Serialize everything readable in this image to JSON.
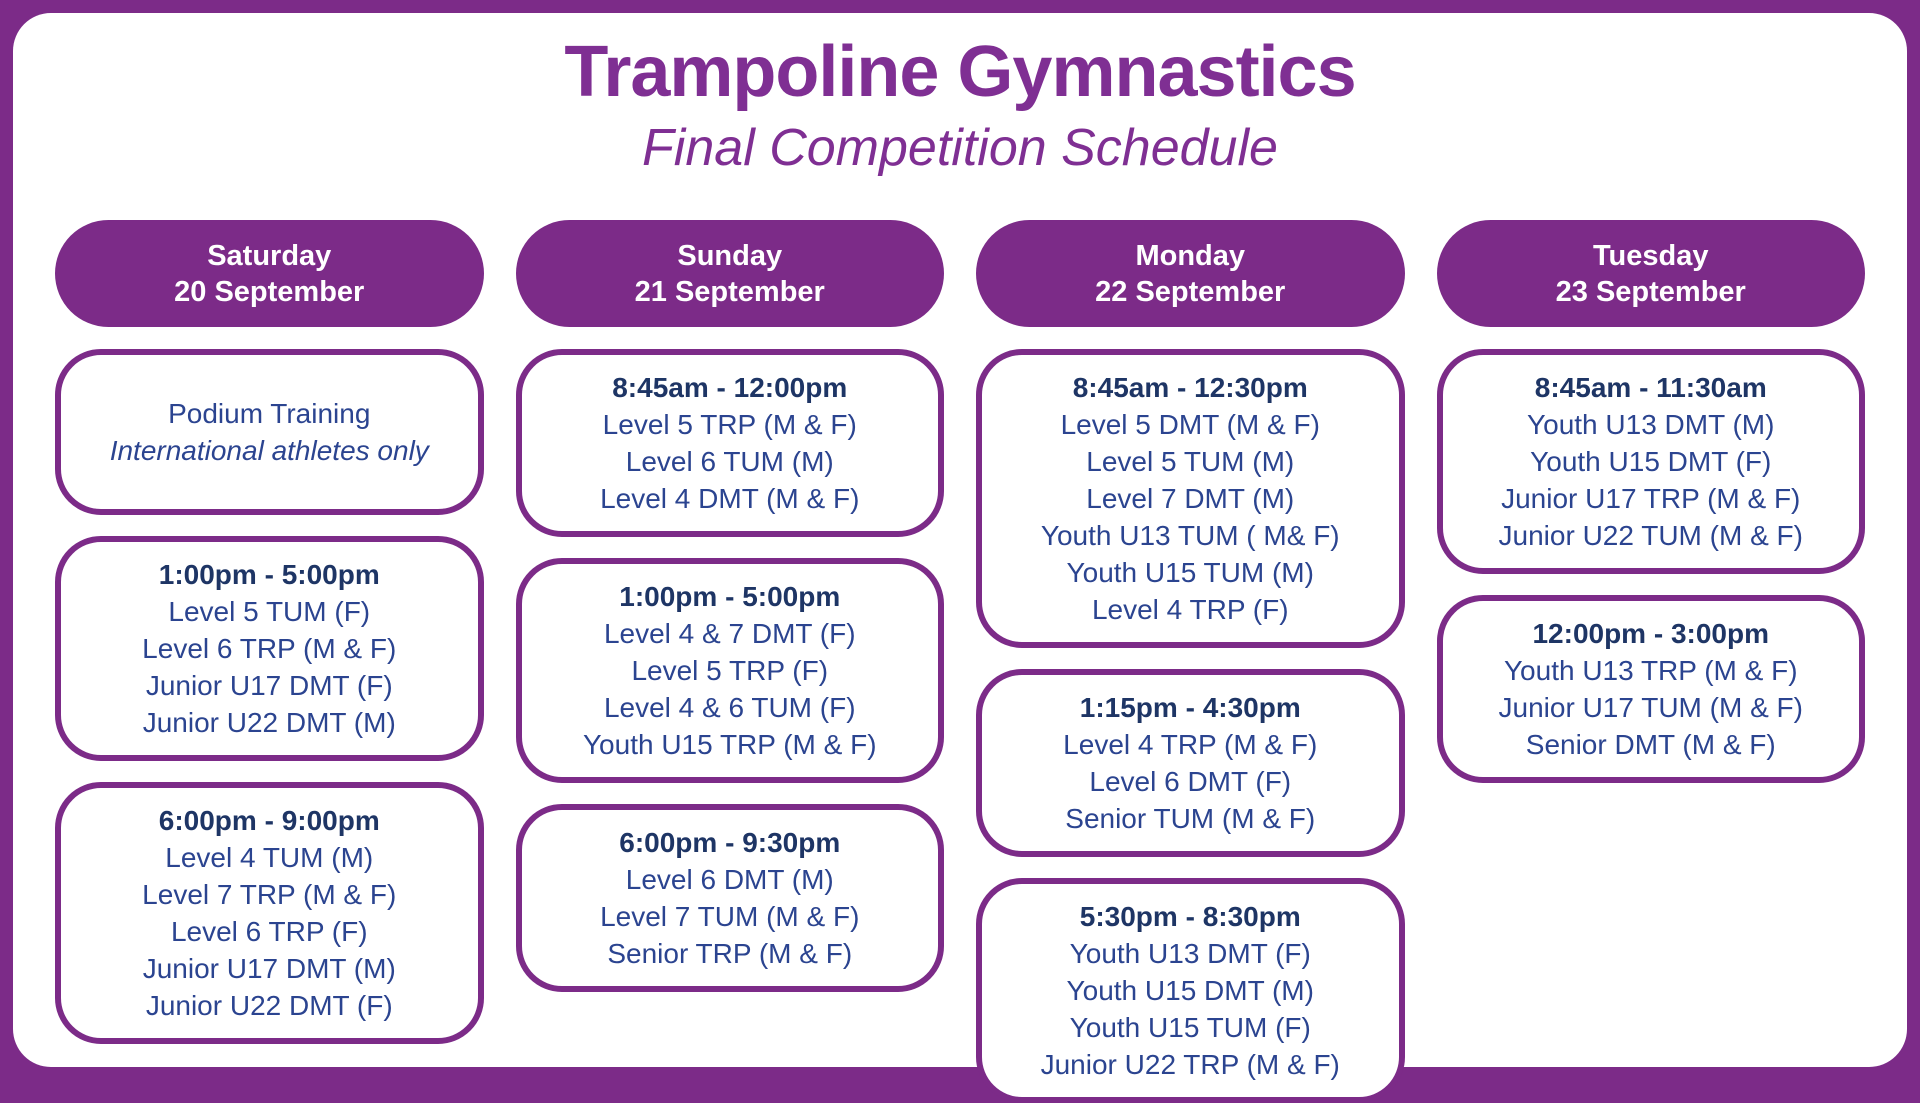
{
  "page": {
    "title": "Trampoline Gymnastics",
    "subtitle": "Final Competition Schedule"
  },
  "colors": {
    "purple": "#7c2b88",
    "title_purple": "#7f2f93",
    "navy_dark": "#1e3565",
    "navy": "#2b4490",
    "background": "#ffffff"
  },
  "columns": [
    {
      "day": "Saturday",
      "date": "20 September",
      "sessions": [
        {
          "time": null,
          "events": [
            "Podium Training"
          ],
          "note": "International athletes only"
        },
        {
          "time": "1:00pm - 5:00pm",
          "events": [
            "Level 5 TUM (F)",
            "Level 6 TRP (M & F)",
            "Junior U17 DMT (F)",
            "Junior U22 DMT (M)"
          ],
          "note": null
        },
        {
          "time": "6:00pm - 9:00pm",
          "events": [
            "Level 4 TUM (M)",
            "Level 7 TRP (M & F)",
            "Level 6 TRP (F)",
            "Junior U17 DMT (M)",
            "Junior U22 DMT (F)"
          ],
          "note": null
        }
      ]
    },
    {
      "day": "Sunday",
      "date": "21 September",
      "sessions": [
        {
          "time": "8:45am - 12:00pm",
          "events": [
            "Level 5 TRP (M & F)",
            "Level 6 TUM (M)",
            "Level 4 DMT (M & F)"
          ],
          "note": null
        },
        {
          "time": "1:00pm - 5:00pm",
          "events": [
            "Level 4 & 7 DMT (F)",
            "Level 5 TRP (F)",
            "Level 4 & 6 TUM (F)",
            "Youth U15 TRP (M & F)"
          ],
          "note": null
        },
        {
          "time": "6:00pm - 9:30pm",
          "events": [
            "Level 6 DMT (M)",
            "Level 7 TUM (M & F)",
            "Senior TRP (M & F)"
          ],
          "note": null
        }
      ]
    },
    {
      "day": "Monday",
      "date": "22 September",
      "sessions": [
        {
          "time": "8:45am - 12:30pm",
          "events": [
            "Level 5 DMT (M & F)",
            "Level 5 TUM (M)",
            "Level 7 DMT (M)",
            "Youth U13 TUM ( M& F)",
            "Youth U15 TUM (M)",
            "Level 4 TRP (F)"
          ],
          "note": null
        },
        {
          "time": "1:15pm - 4:30pm",
          "events": [
            "Level 4 TRP (M & F)",
            "Level 6 DMT (F)",
            "Senior TUM (M & F)"
          ],
          "note": null
        },
        {
          "time": "5:30pm - 8:30pm",
          "events": [
            "Youth U13 DMT (F)",
            "Youth U15 DMT (M)",
            "Youth U15 TUM (F)",
            "Junior U22 TRP (M & F)"
          ],
          "note": null
        }
      ]
    },
    {
      "day": "Tuesday",
      "date": "23 September",
      "sessions": [
        {
          "time": "8:45am - 11:30am",
          "events": [
            "Youth U13 DMT (M)",
            "Youth U15 DMT (F)",
            "Junior U17 TRP (M & F)",
            "Junior U22 TUM (M & F)"
          ],
          "note": null
        },
        {
          "time": "12:00pm - 3:00pm",
          "events": [
            "Youth U13 TRP (M & F)",
            "Junior U17 TUM (M & F)",
            "Senior DMT (M & F)"
          ],
          "note": null
        }
      ]
    }
  ]
}
